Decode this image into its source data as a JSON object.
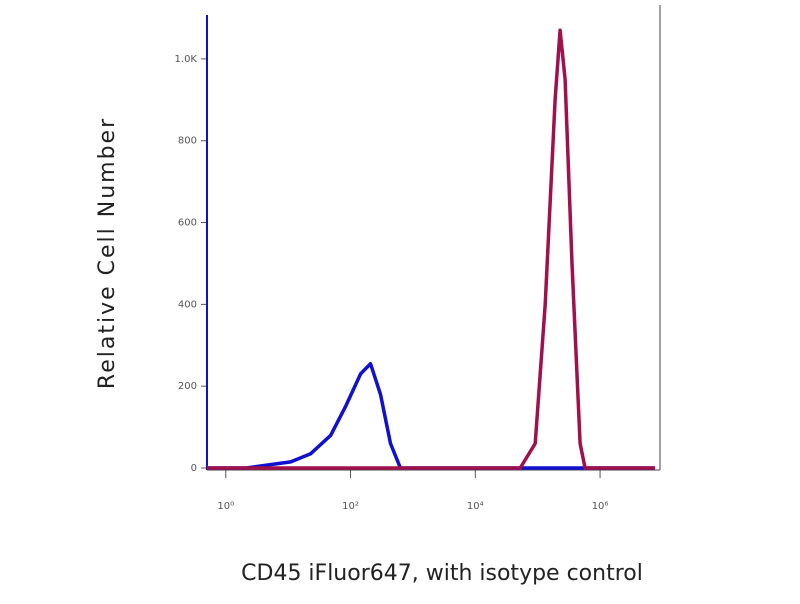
{
  "chart_data": {
    "type": "line",
    "x_label": "CD45 iFluor647, with isotype control",
    "y_label": "Relative Cell Number",
    "log_x": true,
    "xlim": [
      0.5,
      7600000
    ],
    "xticks": [
      {
        "value": 1,
        "label": "10⁰"
      },
      {
        "value": 100,
        "label": "10²"
      },
      {
        "value": 10000,
        "label": "10⁴"
      },
      {
        "value": 1000000,
        "label": "10⁶"
      }
    ],
    "ylim": [
      0,
      1100
    ],
    "yticks": [
      0,
      200,
      400,
      600,
      800,
      {
        "value": 1000,
        "label": "1.0K"
      }
    ],
    "series": [
      {
        "color": "#1010d0",
        "x": [
          0.5,
          2.1,
          3.6,
          11,
          23,
          48,
          83,
          145,
          209,
          302,
          437,
          631,
          7600000
        ],
        "values": [
          0,
          0,
          5,
          15,
          35,
          80,
          150,
          230,
          255,
          180,
          60,
          0,
          0
        ]
      },
      {
        "color": "#a0104a",
        "x": [
          0.5,
          52500,
          91200,
          132000,
          190000,
          229000,
          275000,
          355000,
          479000,
          575000,
          7600000
        ],
        "values": [
          0,
          0,
          60,
          400,
          900,
          1070,
          950,
          500,
          60,
          0,
          0
        ]
      }
    ]
  }
}
